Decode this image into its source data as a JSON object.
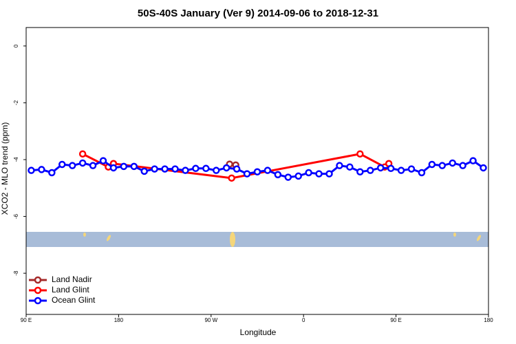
{
  "chart_data": {
    "type": "line",
    "title": "50S-40S January (Ver 9)   2014-09-06 to 2018-12-31",
    "x_label": "Longitude",
    "y_label": "XCO2 - MLO trend (ppm)",
    "xlim": [
      90,
      540
    ],
    "xticks": [
      {
        "value": 90,
        "label": "90 E"
      },
      {
        "value": 180,
        "label": "180"
      },
      {
        "value": 270,
        "label": "90 W"
      },
      {
        "value": 360,
        "label": "0"
      },
      {
        "value": 450,
        "label": "90 E"
      },
      {
        "value": 540,
        "label": "180"
      }
    ],
    "ylim": [
      -9.45,
      0.65
    ],
    "yticks": [
      0,
      -2,
      -4,
      -6,
      -8
    ],
    "legend": "bottom-left",
    "series": [
      {
        "name": "Land Nadir",
        "color": "#a52a2a",
        "x": [
          288,
          294
        ],
        "values": [
          -4.16,
          -4.19
        ]
      },
      {
        "name": "Land Glint",
        "color": "#ff0000",
        "x": [
          145,
          170,
          175,
          290,
          415,
          439,
          443
        ],
        "values": [
          -3.8,
          -4.26,
          -4.14,
          -4.65,
          -3.8,
          -4.26,
          -4.14
        ]
      },
      {
        "name": "Ocean Glint",
        "color": "#0000ff",
        "x": [
          95,
          105,
          115,
          125,
          135,
          145,
          155,
          165,
          175,
          185,
          195,
          205,
          215,
          225,
          235,
          245,
          255,
          265,
          275,
          285,
          295,
          305,
          315,
          325,
          335,
          345,
          355,
          365,
          375,
          385,
          395,
          405,
          415,
          425,
          435,
          445,
          455,
          465,
          475,
          485,
          495,
          505,
          515,
          525,
          535
        ],
        "values": [
          -4.38,
          -4.35,
          -4.46,
          -4.17,
          -4.21,
          -4.12,
          -4.21,
          -4.04,
          -4.29,
          -4.24,
          -4.24,
          -4.41,
          -4.33,
          -4.33,
          -4.33,
          -4.38,
          -4.31,
          -4.31,
          -4.38,
          -4.29,
          -4.33,
          -4.5,
          -4.43,
          -4.38,
          -4.53,
          -4.62,
          -4.58,
          -4.46,
          -4.5,
          -4.5,
          -4.21,
          -4.26,
          -4.43,
          -4.38,
          -4.29,
          -4.31,
          -4.38,
          -4.33,
          -4.46,
          -4.17,
          -4.21,
          -4.12,
          -4.21,
          -4.04,
          -4.29
        ]
      }
    ]
  }
}
